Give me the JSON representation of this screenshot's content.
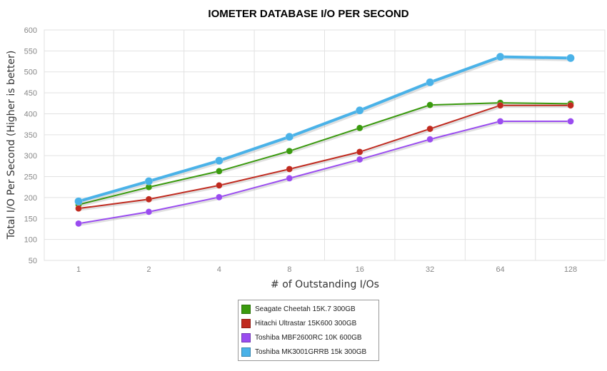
{
  "chart_data": {
    "type": "line",
    "title": "IOMETER DATABASE I/O PER SECOND",
    "xlabel": "# of Outstanding I/Os",
    "ylabel": "Total I/O Per Second (Higher is better)",
    "categories": [
      "1",
      "2",
      "4",
      "8",
      "16",
      "32",
      "64",
      "128"
    ],
    "ylim": [
      50,
      600
    ],
    "yticks": [
      "50",
      "100",
      "150",
      "200",
      "250",
      "300",
      "350",
      "400",
      "450",
      "500",
      "550",
      "600"
    ],
    "grid": true,
    "legend_position": "bottom",
    "series": [
      {
        "name": "Seagate Cheetah 15K.7 300GB",
        "color": "#3a9a0e",
        "values": [
          183,
          225,
          263,
          311,
          366,
          421,
          426,
          424
        ]
      },
      {
        "name": "Hitachi Ultrastar 15K600 300GB",
        "color": "#c02a1f",
        "values": [
          174,
          196,
          229,
          268,
          309,
          364,
          420,
          420
        ]
      },
      {
        "name": "Toshiba MBF2600RC 10K 600GB",
        "color": "#9a4cf0",
        "values": [
          138,
          166,
          201,
          246,
          291,
          339,
          382,
          382
        ]
      },
      {
        "name": "Toshiba MK3001GRRB 15k 300GB",
        "color": "#4ab2e8",
        "values": [
          191,
          239,
          288,
          345,
          408,
          475,
          536,
          533
        ]
      }
    ]
  }
}
